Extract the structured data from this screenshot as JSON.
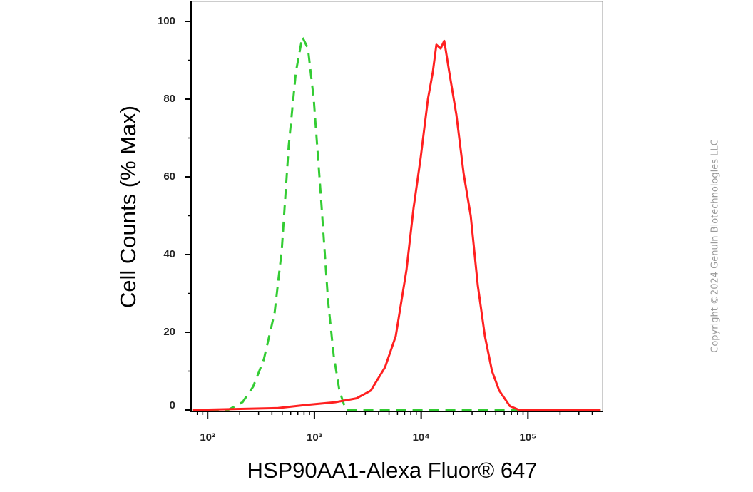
{
  "chart_data": {
    "type": "line",
    "x_label": "HSP90AA1-Alexa Fluor® 647",
    "y_label": "Cell Counts (% Max)",
    "copyright": "Copyright ©2024 Genuin Biotechnologies LLC",
    "xscale": "log",
    "xlim": [
      70,
      500000
    ],
    "ylim": [
      0,
      105
    ],
    "xticks": [
      {
        "value": 100,
        "label": "10²"
      },
      {
        "value": 1000,
        "label": "10³"
      },
      {
        "value": 10000,
        "label": "10⁴"
      },
      {
        "value": 100000,
        "label": "10⁵"
      }
    ],
    "xminorticks": [
      80,
      90,
      200,
      300,
      400,
      500,
      600,
      700,
      800,
      900,
      2000,
      3000,
      4000,
      5000,
      6000,
      7000,
      8000,
      9000,
      20000,
      30000,
      40000,
      50000,
      60000,
      70000,
      80000,
      90000,
      200000,
      300000,
      400000
    ],
    "yticks": [
      0,
      20,
      40,
      60,
      80,
      100
    ],
    "yminorticks": [
      10,
      30,
      50,
      70,
      90
    ],
    "grid": false,
    "series": [
      {
        "color": "#33cc33",
        "dash": true,
        "x": [
          72,
          155,
          212,
          267,
          336,
          424,
          494,
          575,
          671,
          771,
          871,
          986,
          1150,
          1343,
          1517,
          1716,
          1971,
          480000
        ],
        "values": [
          0,
          0,
          2,
          6,
          13,
          25,
          41,
          68,
          87,
          96,
          93,
          80,
          55,
          28,
          14,
          5,
          0,
          0
        ]
      },
      {
        "color": "#ff2020",
        "dash": false,
        "x": [
          72,
          457,
          845,
          1563,
          2483,
          3375,
          4592,
          5781,
          7278,
          8492,
          9908,
          11560,
          12860,
          13900,
          15240,
          16450,
          18320,
          21380,
          24940,
          29100,
          33950,
          39540,
          46130,
          53830,
          67760,
          82790,
          480000
        ],
        "values": [
          0,
          0.5,
          1.3,
          2,
          3,
          5,
          11,
          19,
          36,
          52,
          65,
          80,
          87,
          94,
          93,
          95,
          87,
          76,
          61,
          50,
          32,
          19,
          10,
          5,
          1,
          0,
          0
        ]
      }
    ]
  }
}
